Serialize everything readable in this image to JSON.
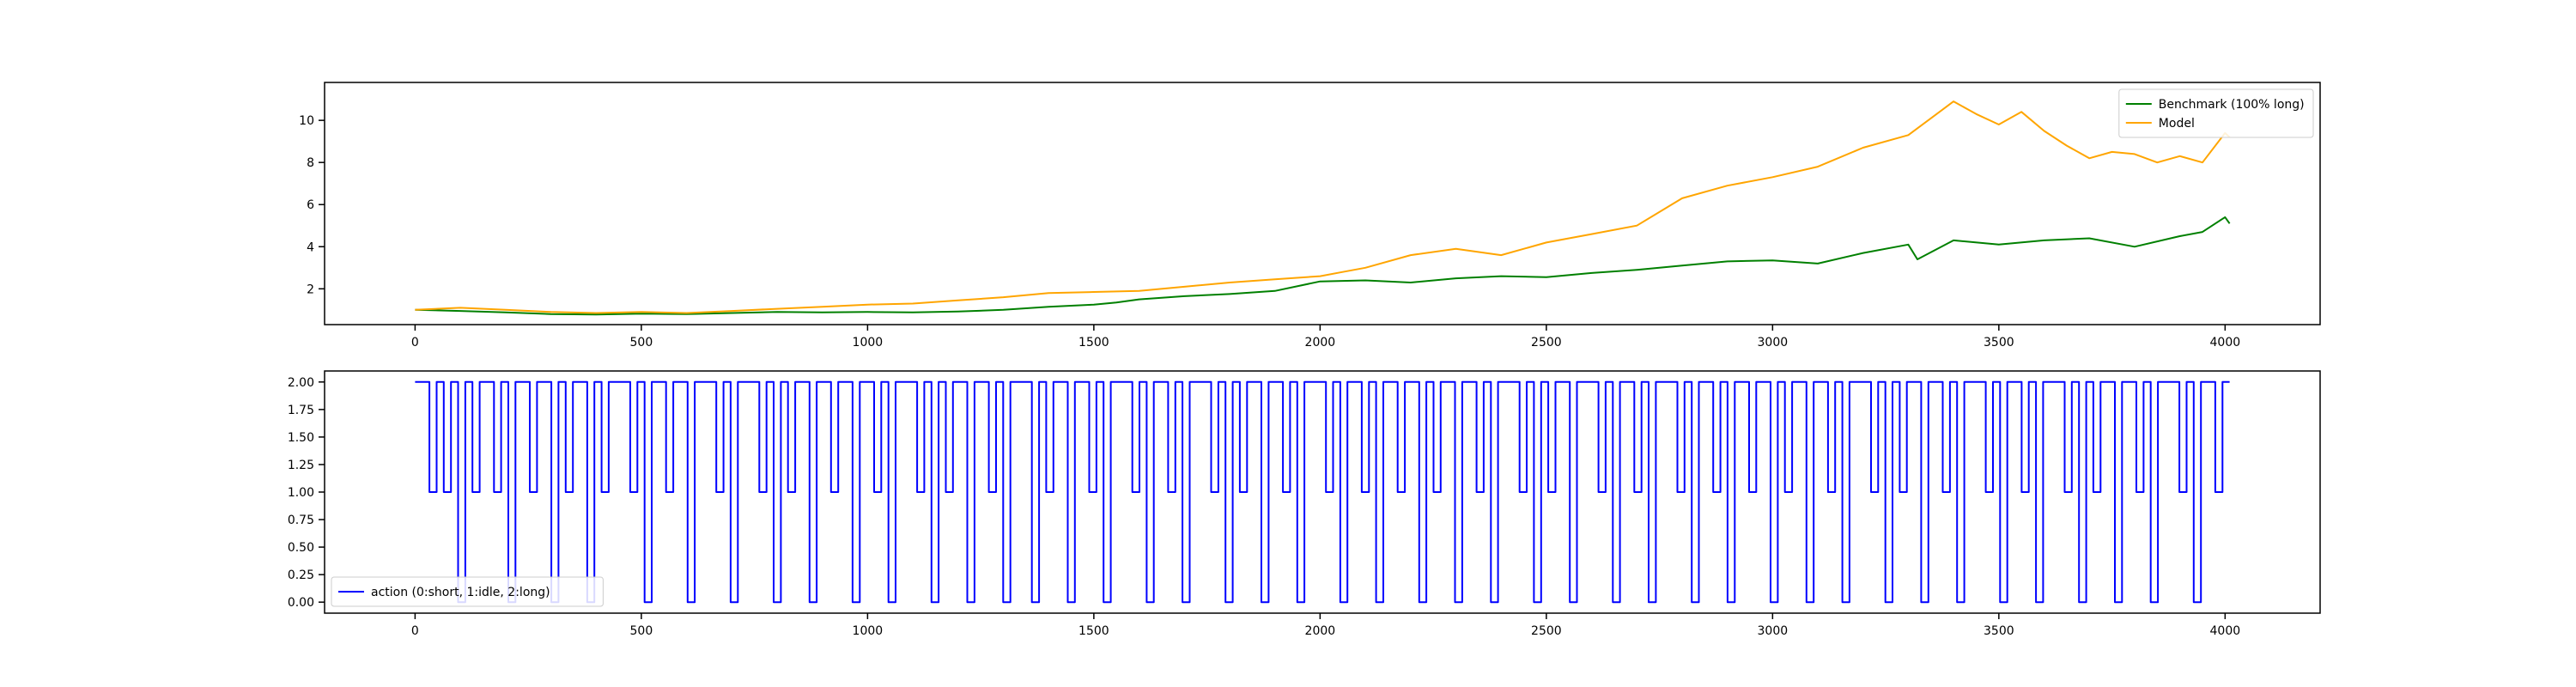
{
  "chart_data": [
    {
      "type": "line",
      "title": "",
      "xlabel": "",
      "ylabel": "",
      "xlim": [
        -200,
        4210
      ],
      "ylim": [
        0.3,
        11.8
      ],
      "xticks": [
        0,
        500,
        1000,
        1500,
        2000,
        2500,
        3000,
        3500,
        4000
      ],
      "xtick_labels": [
        "0",
        "500",
        "1000",
        "1500",
        "2000",
        "2500",
        "3000",
        "3500",
        "4000"
      ],
      "yticks": [
        2,
        4,
        6,
        8,
        10
      ],
      "ytick_labels": [
        "2",
        "4",
        "6",
        "8",
        "10"
      ],
      "grid": false,
      "legend_position": "top-right",
      "series": [
        {
          "name": "Benchmark (100% long)",
          "color": "#008000",
          "x": [
            0,
            100,
            200,
            300,
            400,
            500,
            600,
            700,
            800,
            900,
            1000,
            1100,
            1200,
            1300,
            1400,
            1500,
            1550,
            1600,
            1700,
            1800,
            1900,
            2000,
            2100,
            2200,
            2300,
            2400,
            2500,
            2600,
            2700,
            2800,
            2900,
            3000,
            3100,
            3200,
            3300,
            3320,
            3400,
            3500,
            3600,
            3700,
            3800,
            3900,
            3950,
            4000,
            4010
          ],
          "y": [
            1.0,
            0.95,
            0.88,
            0.8,
            0.78,
            0.82,
            0.8,
            0.85,
            0.9,
            0.88,
            0.9,
            0.88,
            0.92,
            1.0,
            1.15,
            1.25,
            1.35,
            1.5,
            1.65,
            1.75,
            1.9,
            2.35,
            2.4,
            2.3,
            2.5,
            2.6,
            2.55,
            2.75,
            2.9,
            3.1,
            3.3,
            3.35,
            3.2,
            3.7,
            4.1,
            3.4,
            4.3,
            4.1,
            4.3,
            4.4,
            4.0,
            4.5,
            4.7,
            5.4,
            5.1
          ]
        },
        {
          "name": "Model",
          "color": "#ffa500",
          "x": [
            0,
            100,
            200,
            300,
            400,
            500,
            600,
            700,
            800,
            900,
            1000,
            1100,
            1200,
            1300,
            1400,
            1500,
            1600,
            1700,
            1800,
            1900,
            2000,
            2050,
            2100,
            2200,
            2300,
            2400,
            2500,
            2600,
            2700,
            2800,
            2900,
            3000,
            3100,
            3200,
            3300,
            3350,
            3400,
            3450,
            3500,
            3550,
            3600,
            3650,
            3700,
            3750,
            3800,
            3850,
            3900,
            3950,
            4000,
            4010
          ],
          "y": [
            1.0,
            1.1,
            1.0,
            0.9,
            0.85,
            0.9,
            0.85,
            0.95,
            1.05,
            1.15,
            1.25,
            1.3,
            1.45,
            1.6,
            1.8,
            1.85,
            1.9,
            2.1,
            2.3,
            2.45,
            2.6,
            2.8,
            3.0,
            3.6,
            3.9,
            3.6,
            4.2,
            4.6,
            5.0,
            6.3,
            6.9,
            7.3,
            7.8,
            8.7,
            9.3,
            10.1,
            10.9,
            10.3,
            9.8,
            10.4,
            9.5,
            8.8,
            8.2,
            8.5,
            8.4,
            8.0,
            8.3,
            8.0,
            9.4,
            9.2
          ]
        }
      ]
    },
    {
      "type": "line",
      "title": "",
      "xlabel": "",
      "ylabel": "",
      "xlim": [
        -200,
        4210
      ],
      "ylim": [
        -0.1,
        2.1
      ],
      "xticks": [
        0,
        500,
        1000,
        1500,
        2000,
        2500,
        3000,
        3500,
        4000
      ],
      "xtick_labels": [
        "0",
        "500",
        "1000",
        "1500",
        "2000",
        "2500",
        "3000",
        "3500",
        "4000"
      ],
      "yticks": [
        0.0,
        0.25,
        0.5,
        0.75,
        1.0,
        1.25,
        1.5,
        1.75,
        2.0
      ],
      "ytick_labels": [
        "0.00",
        "0.25",
        "0.50",
        "0.75",
        "1.00",
        "1.25",
        "1.50",
        "1.75",
        "2.00"
      ],
      "grid": false,
      "legend_position": "bottom-left",
      "series": [
        {
          "name": "action (0:short, 1:idle, 2:long)",
          "color": "#0000ff",
          "x_start": 0,
          "x_end": 4010,
          "values": [
            2,
            2,
            1,
            2,
            1,
            2,
            0,
            2,
            1,
            2,
            2,
            1,
            2,
            0,
            2,
            2,
            1,
            2,
            2,
            0,
            2,
            1,
            2,
            2,
            0,
            2,
            1,
            2,
            2,
            2,
            1,
            2,
            0,
            2,
            2,
            1,
            2,
            2,
            0,
            2,
            2,
            2,
            1,
            2,
            0,
            2,
            2,
            2,
            1,
            2,
            0,
            2,
            1,
            2,
            2,
            0,
            2,
            2,
            1,
            2,
            2,
            0,
            2,
            2,
            1,
            2,
            0,
            2,
            2,
            2,
            1,
            2,
            0,
            2,
            1,
            2,
            2,
            0,
            2,
            2,
            1,
            2,
            0,
            2,
            2,
            2,
            0,
            2,
            1,
            2,
            2,
            0,
            2,
            2,
            1,
            2,
            0,
            2,
            2,
            2,
            1,
            2,
            0,
            2,
            2,
            1,
            2,
            0,
            2,
            2,
            2,
            1,
            2,
            0,
            2,
            1,
            2,
            2,
            0,
            2,
            2,
            1,
            2,
            0,
            2,
            2,
            2,
            1,
            2,
            0,
            2,
            2,
            1,
            2,
            0,
            2,
            2,
            1,
            2,
            2,
            0,
            2,
            1,
            2,
            2,
            0,
            2,
            2,
            1,
            2,
            0,
            2,
            2,
            2,
            1,
            2,
            0,
            2,
            1,
            2,
            2,
            0,
            2,
            2,
            2,
            1,
            2,
            0,
            2,
            2,
            1,
            2,
            0,
            2,
            2,
            2,
            1,
            2,
            0,
            2,
            2,
            1,
            2,
            0,
            2,
            2,
            1,
            2,
            2,
            0,
            2,
            1,
            2,
            2,
            0,
            2,
            2,
            1,
            2,
            0,
            2,
            2,
            2,
            1,
            2,
            0,
            2,
            1,
            2,
            2,
            0,
            2,
            2,
            1,
            2,
            0,
            2,
            2,
            2,
            1,
            2,
            0,
            2,
            2,
            1,
            2,
            0,
            2,
            2,
            2,
            1,
            2,
            0,
            2,
            1,
            2,
            2,
            0,
            2,
            2,
            1,
            2,
            0,
            2,
            2,
            2,
            1,
            2,
            0,
            2,
            2,
            1,
            2,
            2
          ]
        }
      ]
    }
  ]
}
